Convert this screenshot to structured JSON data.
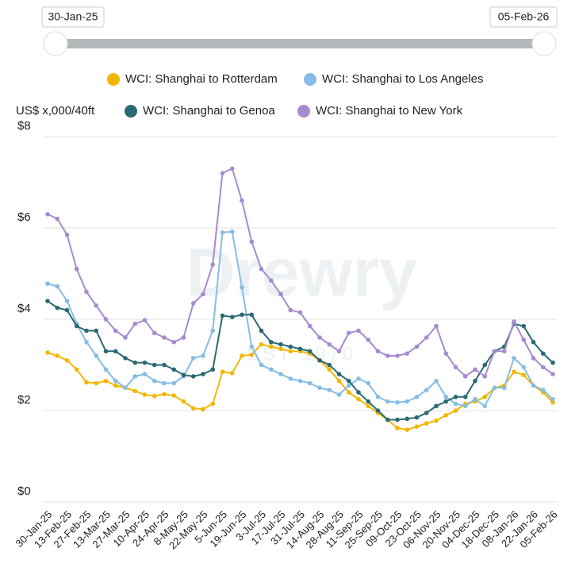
{
  "chart_data": {
    "type": "line",
    "range_start": "30-Jan-25",
    "range_end": "05-Feb-26",
    "y_label": "US$ x,000/40ft",
    "watermark": "Drewry",
    "watermark_sub": "EST 1970",
    "categories": [
      "30-Jan-25",
      null,
      "13-Feb-25",
      null,
      "27-Feb-25",
      null,
      "13-Mar-25",
      null,
      "27-Mar-25",
      null,
      "10-Apr-25",
      null,
      "24-Apr-25",
      null,
      "8-May-25",
      null,
      "22-May-25",
      null,
      "5-Jun-25",
      null,
      "19-Jun-25",
      null,
      "3-Jul-25",
      null,
      "17-Jul-25",
      null,
      "31-Jul-25",
      null,
      "14-Aug-25",
      null,
      "28-Aug-25",
      null,
      "11-Sep-25",
      null,
      "25-Sep-25",
      null,
      "09-Oct-25",
      null,
      "23-Oct-25",
      null,
      "06-Nov-25",
      null,
      "20-Nov-25",
      null,
      "04-Dec-25",
      null,
      "18-Dec-25",
      null,
      "08-Jan-26",
      null,
      "22-Jan-26",
      null,
      "05-Feb-26"
    ],
    "series": [
      {
        "name": "WCI: Shanghai to Rotterdam",
        "color": "#f2b705",
        "values": [
          3.27,
          3.2,
          3.1,
          2.9,
          2.62,
          2.6,
          2.65,
          2.55,
          2.5,
          2.43,
          2.35,
          2.32,
          2.36,
          2.33,
          2.2,
          2.05,
          2.03,
          2.15,
          2.85,
          2.82,
          3.2,
          3.22,
          3.45,
          3.4,
          3.35,
          3.3,
          3.3,
          3.25,
          3.1,
          2.9,
          2.65,
          2.4,
          2.25,
          2.1,
          1.95,
          1.8,
          1.62,
          1.58,
          1.65,
          1.72,
          1.78,
          1.9,
          2.0,
          2.15,
          2.2,
          2.3,
          2.5,
          2.55,
          2.85,
          2.78,
          2.55,
          2.4,
          2.18
        ]
      },
      {
        "name": "WCI: Shanghai to Los Angeles",
        "color": "#86bde4",
        "values": [
          4.78,
          4.72,
          4.4,
          3.9,
          3.5,
          3.2,
          2.9,
          2.65,
          2.5,
          2.75,
          2.8,
          2.65,
          2.6,
          2.6,
          2.75,
          3.15,
          3.2,
          3.75,
          5.9,
          5.92,
          4.7,
          3.4,
          3.0,
          2.9,
          2.8,
          2.7,
          2.65,
          2.6,
          2.5,
          2.45,
          2.35,
          2.55,
          2.7,
          2.6,
          2.3,
          2.2,
          2.18,
          2.2,
          2.3,
          2.45,
          2.65,
          2.3,
          2.15,
          2.1,
          2.25,
          2.1,
          2.5,
          2.5,
          3.15,
          2.95,
          2.55,
          2.45,
          2.25
        ]
      },
      {
        "name": "WCI: Shanghai to Genoa",
        "color": "#2a6a72",
        "values": [
          4.4,
          4.25,
          4.2,
          3.85,
          3.75,
          3.75,
          3.3,
          3.3,
          3.15,
          3.05,
          3.05,
          3.0,
          3.0,
          2.9,
          2.78,
          2.75,
          2.8,
          2.9,
          4.08,
          4.05,
          4.1,
          4.1,
          3.75,
          3.5,
          3.45,
          3.4,
          3.35,
          3.3,
          3.1,
          3.0,
          2.8,
          2.65,
          2.4,
          2.2,
          2.0,
          1.8,
          1.8,
          1.82,
          1.85,
          1.95,
          2.1,
          2.2,
          2.3,
          2.3,
          2.65,
          3.0,
          3.3,
          3.4,
          3.9,
          3.85,
          3.5,
          3.25,
          3.05
        ]
      },
      {
        "name": "WCI: Shanghai to New York",
        "color": "#a78bd0",
        "values": [
          6.3,
          6.2,
          5.85,
          5.1,
          4.6,
          4.3,
          4.0,
          3.75,
          3.6,
          3.9,
          3.98,
          3.7,
          3.6,
          3.5,
          3.6,
          4.35,
          4.55,
          5.2,
          7.2,
          7.3,
          6.6,
          5.7,
          5.1,
          4.85,
          4.55,
          4.2,
          4.15,
          3.85,
          3.6,
          3.45,
          3.3,
          3.7,
          3.75,
          3.55,
          3.3,
          3.2,
          3.2,
          3.25,
          3.4,
          3.6,
          3.85,
          3.25,
          2.95,
          2.75,
          2.9,
          2.75,
          3.3,
          3.3,
          3.95,
          3.55,
          3.15,
          2.95,
          2.8
        ]
      }
    ],
    "ylim": [
      0,
      8
    ],
    "yticks": [
      {
        "value": 0,
        "label": "$0"
      },
      {
        "value": 2,
        "label": "$2"
      },
      {
        "value": 4,
        "label": "$4"
      },
      {
        "value": 6,
        "label": "$6"
      },
      {
        "value": 8,
        "label": "$8"
      }
    ],
    "grid": true
  }
}
